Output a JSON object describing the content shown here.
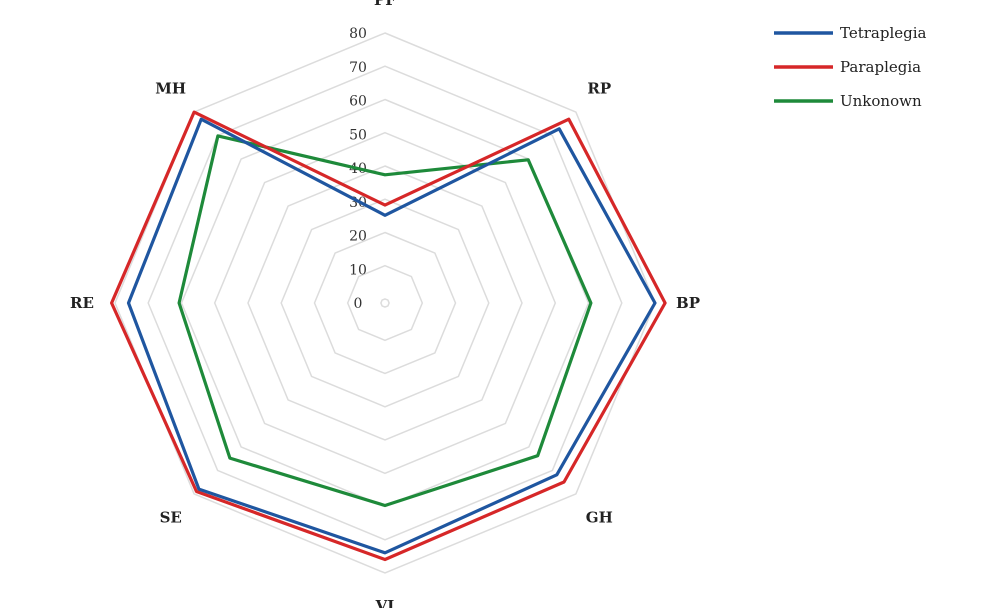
{
  "chart_data": {
    "type": "radar",
    "axes": [
      "PF",
      "RP",
      "BP",
      "GH",
      "VI",
      "SE",
      "RE",
      "MH"
    ],
    "r_ticks": [
      "0",
      "10",
      "20",
      "30",
      "40",
      "50",
      "60",
      "70",
      "80"
    ],
    "rlim": [
      0,
      80
    ],
    "grid": true,
    "legend_position": "top-right",
    "series": [
      {
        "name": "Tetraplegia",
        "color": "#1f56a0",
        "values": [
          26,
          73,
          80,
          72,
          74,
          78,
          76,
          77
        ]
      },
      {
        "name": "Paraplegia",
        "color": "#d62728",
        "values": [
          29,
          77,
          83,
          75,
          76,
          79,
          81,
          80
        ]
      },
      {
        "name": "Unkonown",
        "color": "#1e8a3a",
        "values": [
          38,
          60,
          61,
          64,
          60,
          65,
          61,
          70
        ]
      }
    ]
  }
}
